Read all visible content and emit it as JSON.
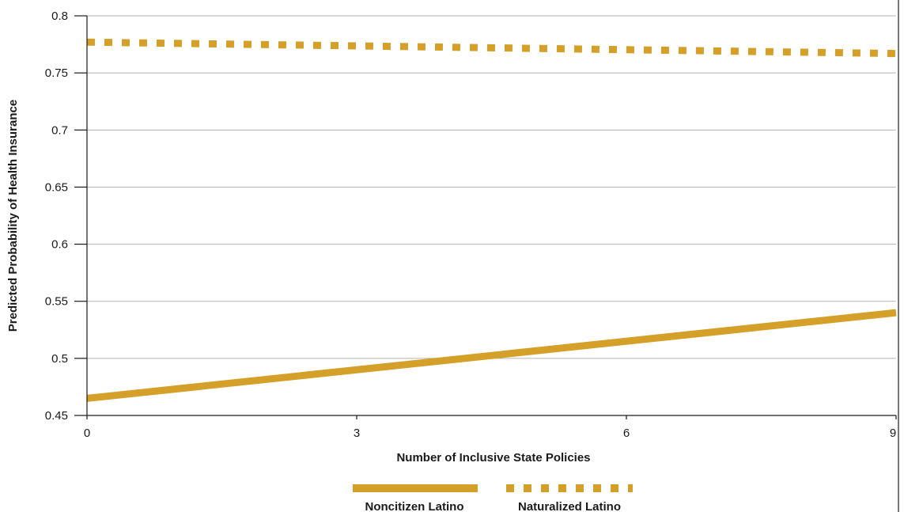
{
  "chart_data": {
    "type": "line",
    "title": "",
    "xlabel": "Number of Inclusive State Policies",
    "ylabel": "Predicted Probability of Health Insurance",
    "xlim": [
      0,
      9
    ],
    "ylim": [
      0.45,
      0.8
    ],
    "x_ticks": [
      0,
      3,
      6,
      9
    ],
    "x_tick_labels": [
      "0",
      "3",
      "6",
      "9"
    ],
    "y_ticks": [
      0.45,
      0.5,
      0.55,
      0.6,
      0.65,
      0.7,
      0.75,
      0.8
    ],
    "y_tick_labels": [
      "0.45",
      "0.5",
      "0.55",
      "0.6",
      "0.65",
      "0.7",
      "0.75",
      "0.8"
    ],
    "grid": "horizontal",
    "legend_position": "bottom-center",
    "series": [
      {
        "name": "Noncitizen Latino",
        "style": "solid",
        "color": "#D4A02A",
        "x": [
          0,
          9
        ],
        "y": [
          0.465,
          0.54
        ]
      },
      {
        "name": "Naturalized Latino",
        "style": "dotted",
        "color": "#D4A02A",
        "x": [
          0,
          9
        ],
        "y": [
          0.777,
          0.767
        ]
      }
    ]
  }
}
